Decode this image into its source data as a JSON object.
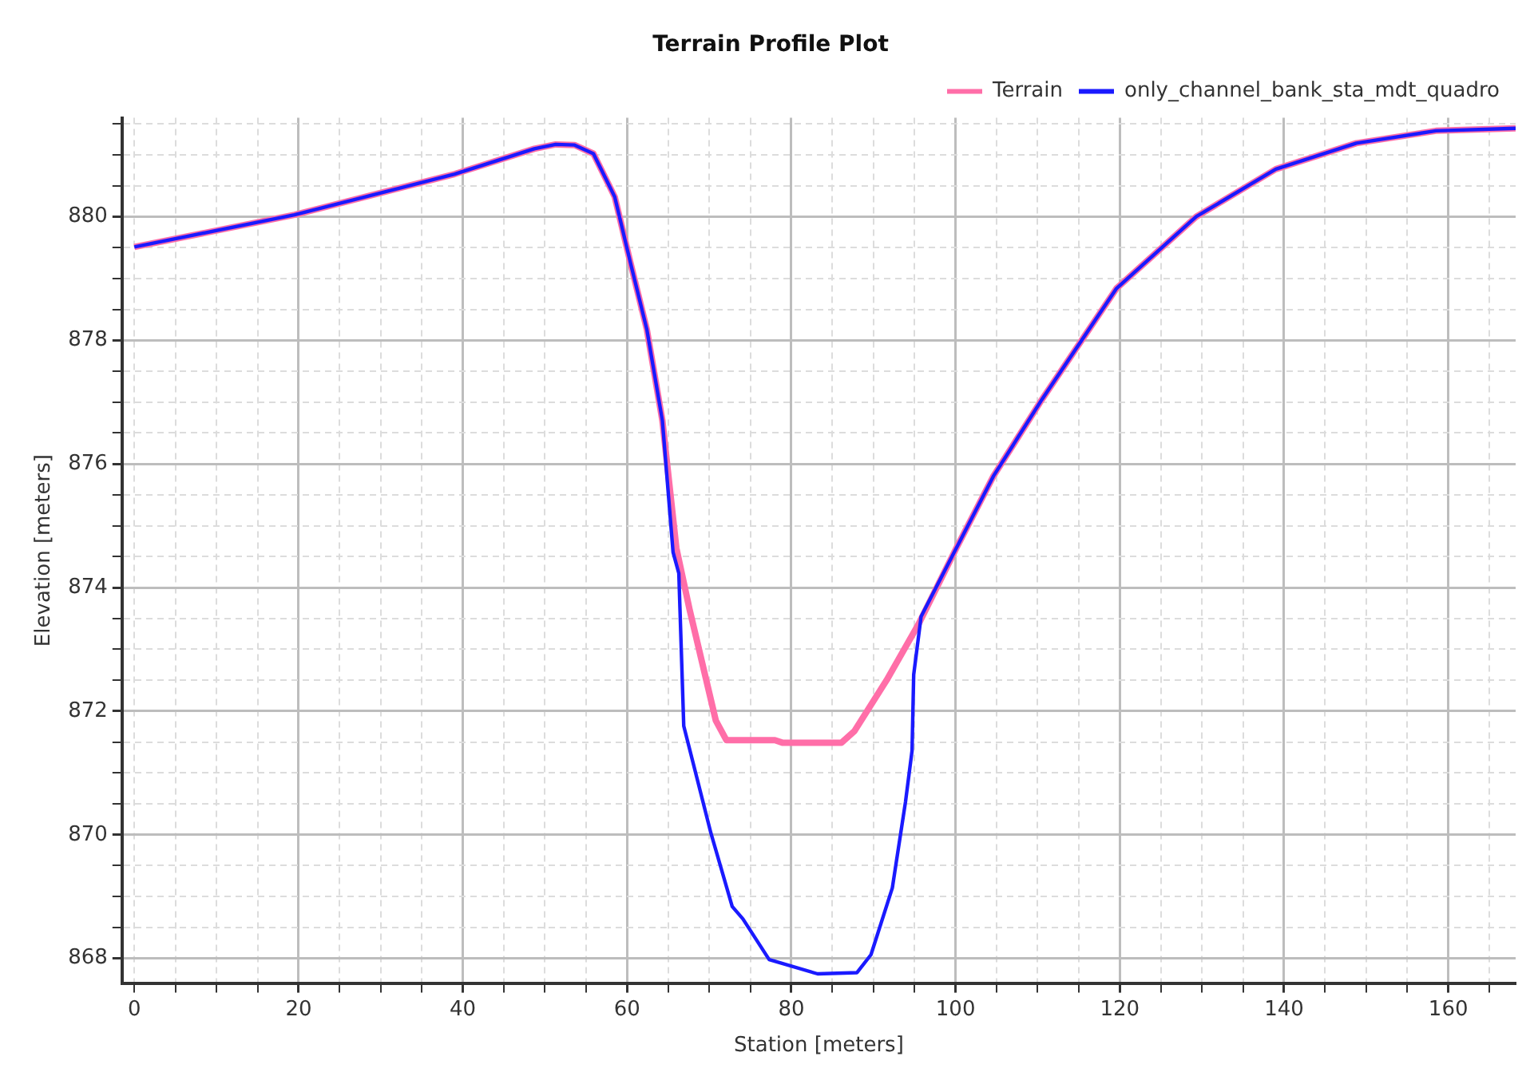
{
  "chart_data": {
    "type": "line",
    "title": "Terrain Profile Plot",
    "xlabel": "Station [meters]",
    "ylabel": "Elevation [meters]",
    "xlim": [
      -1.5,
      168.2
    ],
    "ylim": [
      867.6,
      881.6
    ],
    "xticks": [
      0,
      {
        "value": 5,
        "label": null
      },
      {
        "value": 10,
        "label": null
      },
      {
        "value": 15,
        "label": null
      },
      20,
      {
        "value": 25,
        "label": null
      },
      {
        "value": 30,
        "label": null
      },
      {
        "value": 35,
        "label": null
      },
      40,
      {
        "value": 45,
        "label": null
      },
      {
        "value": 50,
        "label": null
      },
      {
        "value": 55,
        "label": null
      },
      60,
      {
        "value": 65,
        "label": null
      },
      {
        "value": 70,
        "label": null
      },
      {
        "value": 75,
        "label": null
      },
      80,
      {
        "value": 85,
        "label": null
      },
      {
        "value": 90,
        "label": null
      },
      {
        "value": 95,
        "label": null
      },
      100,
      {
        "value": 105,
        "label": null
      },
      {
        "value": 110,
        "label": null
      },
      {
        "value": 115,
        "label": null
      },
      120,
      {
        "value": 125,
        "label": null
      },
      {
        "value": 130,
        "label": null
      },
      {
        "value": 135,
        "label": null
      },
      140,
      {
        "value": 145,
        "label": null
      },
      {
        "value": 150,
        "label": null
      },
      {
        "value": 155,
        "label": null
      },
      160,
      {
        "value": 165,
        "label": null
      }
    ],
    "yticks": [
      868,
      {
        "value": 868.5,
        "label": null
      },
      {
        "value": 869,
        "label": null
      },
      {
        "value": 869.5,
        "label": null
      },
      870,
      {
        "value": 870.5,
        "label": null
      },
      {
        "value": 871,
        "label": null
      },
      {
        "value": 871.5,
        "label": null
      },
      872,
      {
        "value": 872.5,
        "label": null
      },
      {
        "value": 873,
        "label": null
      },
      {
        "value": 873.5,
        "label": null
      },
      874,
      {
        "value": 874.5,
        "label": null
      },
      {
        "value": 875,
        "label": null
      },
      {
        "value": 875.5,
        "label": null
      },
      876,
      {
        "value": 876.5,
        "label": null
      },
      {
        "value": 877,
        "label": null
      },
      {
        "value": 877.5,
        "label": null
      },
      878,
      {
        "value": 878.5,
        "label": null
      },
      {
        "value": 879,
        "label": null
      },
      {
        "value": 879.5,
        "label": null
      },
      880,
      {
        "value": 880.5,
        "label": null
      },
      {
        "value": 881,
        "label": null
      },
      {
        "value": 881.5,
        "label": null
      }
    ],
    "grid": true,
    "legend": "top right",
    "marker": "none",
    "line_style": "solid",
    "series": [
      {
        "name": "Terrain",
        "color": "#ff6ea8",
        "x": [
          0,
          19.5,
          39,
          48.7,
          51.3,
          53.6,
          55.9,
          58.5,
          60.4,
          62.4,
          64.3,
          66,
          67.6,
          70.8,
          72.1,
          78,
          78.9,
          86.1,
          87.7,
          91.6,
          95.5,
          100.1,
          104.6,
          110.5,
          119.6,
          129.3,
          139,
          148.8,
          158.5,
          168.2
        ],
        "values": [
          879.51,
          880.03,
          880.69,
          881.1,
          881.17,
          881.16,
          881.02,
          880.32,
          879.26,
          878.18,
          876.7,
          874.64,
          873.65,
          871.85,
          871.53,
          871.53,
          871.49,
          871.49,
          871.68,
          872.5,
          873.41,
          874.64,
          875.8,
          877.04,
          878.84,
          880.0,
          880.77,
          881.19,
          881.39,
          881.43
        ]
      },
      {
        "name": "only_channel_bank_sta_mdt_quadro",
        "color": "#1a1aff",
        "x": [
          0,
          19.5,
          39,
          48.7,
          51.3,
          53.6,
          55.9,
          58.5,
          60.4,
          62.4,
          64.3,
          65.6,
          66.3,
          66.9,
          70.2,
          72.8,
          74.1,
          77.3,
          83.2,
          88.0,
          89.7,
          92.3,
          93.9,
          94.7,
          94.9,
          95.8,
          100.1,
          104.6,
          110.5,
          119.6,
          129.3,
          139,
          148.8,
          158.5,
          168.2
        ],
        "values": [
          879.51,
          880.03,
          880.69,
          881.1,
          881.17,
          881.16,
          881.02,
          880.32,
          879.26,
          878.18,
          876.7,
          874.57,
          874.23,
          871.76,
          870.03,
          868.84,
          868.64,
          867.98,
          867.75,
          867.77,
          868.06,
          869.14,
          870.53,
          871.36,
          872.59,
          873.53,
          874.64,
          875.8,
          877.04,
          878.84,
          880.0,
          880.77,
          881.19,
          881.39,
          881.43
        ]
      }
    ]
  }
}
